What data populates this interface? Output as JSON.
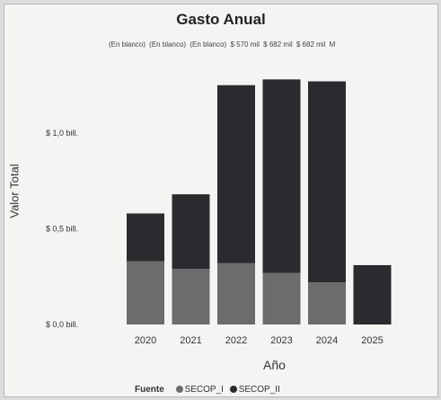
{
  "chart_data": {
    "type": "bar",
    "stacked": true,
    "title": "Gasto Anual",
    "subtitle_labels": [
      "(En blanco)",
      "(En blanco)",
      "(En blanco)",
      "$ 570 mil",
      "$ 682 mil",
      "$ 682 mil",
      "M"
    ],
    "xlabel": "Año",
    "ylabel": "Valor Total",
    "categories": [
      "2020",
      "2021",
      "2022",
      "2023",
      "2024",
      "2025"
    ],
    "y_ticks": [
      {
        "value": 0.0,
        "label": "$ 0,0 bill."
      },
      {
        "value": 0.5,
        "label": "$ 0,5 bill."
      },
      {
        "value": 1.0,
        "label": "$ 1,0 bill."
      }
    ],
    "ylim": [
      0,
      1.25
    ],
    "legend_title": "Fuente",
    "legend_position": "bottom",
    "series": [
      {
        "name": "SECOP_I",
        "color": "#6c6c6c",
        "values": [
          0.33,
          0.29,
          0.32,
          0.27,
          0.22,
          0.0
        ]
      },
      {
        "name": "SECOP_II",
        "color": "#2b2b2f",
        "values": [
          0.25,
          0.39,
          0.93,
          1.01,
          1.05,
          0.31
        ]
      }
    ]
  }
}
